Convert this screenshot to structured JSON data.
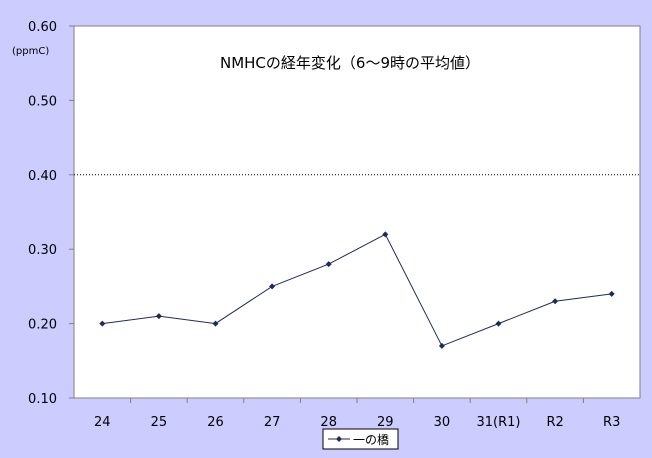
{
  "chart_data": {
    "type": "line",
    "title": "NMHCの経年変化（6～9時の平均値）",
    "unit_label": "(ppmC)",
    "categories": [
      "24",
      "25",
      "26",
      "27",
      "28",
      "29",
      "30",
      "31(R1)",
      "R2",
      "R3"
    ],
    "series": [
      {
        "name": "一の橋",
        "values": [
          0.2,
          0.21,
          0.2,
          0.25,
          0.28,
          0.32,
          0.17,
          0.2,
          0.23,
          0.24
        ],
        "color": "#1f2a5c"
      }
    ],
    "ylim": [
      0.1,
      0.6
    ],
    "yticks": [
      "0.10",
      "0.20",
      "0.30",
      "0.40",
      "0.50",
      "0.60"
    ],
    "reference_line": {
      "value": 0.4,
      "style": "dotted"
    },
    "grid": false,
    "legend_position": "bottom-center",
    "colors": {
      "background": "#ccccff",
      "plot_area": "#ffffff"
    }
  }
}
